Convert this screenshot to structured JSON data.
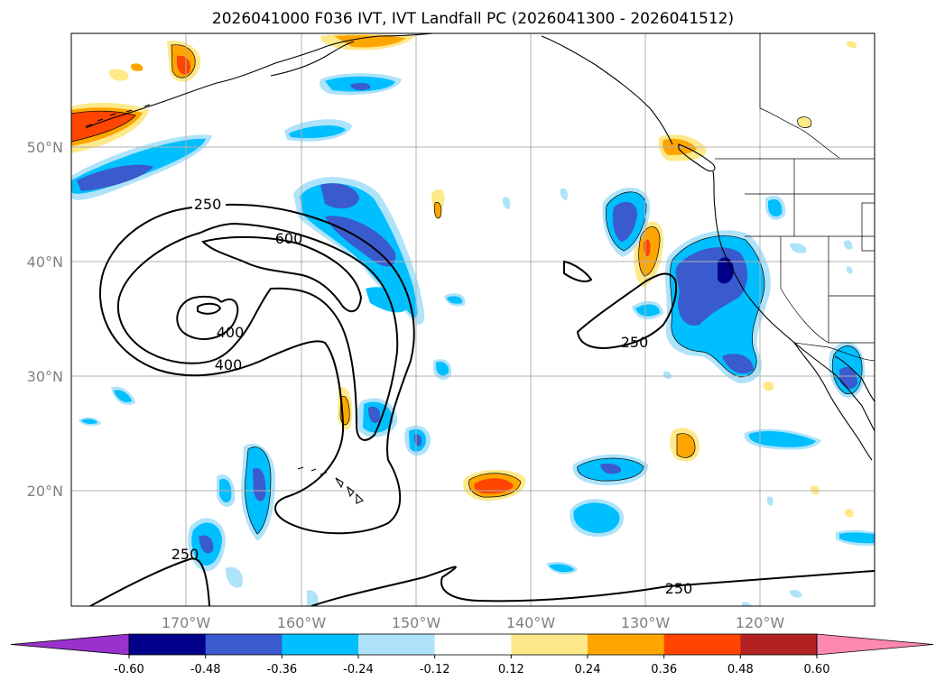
{
  "chart_data": {
    "type": "heatmap",
    "title": "2026041000 F036 IVT, IVT Landfall PC (2026041300 - 2026041512)",
    "lat_ticks": [
      "50°N",
      "40°N",
      "30°N",
      "20°N"
    ],
    "lon_ticks": [
      "170°W",
      "160°W",
      "150°W",
      "140°W",
      "130°W",
      "120°W"
    ],
    "lon_range": [
      -180,
      -110
    ],
    "lat_range": [
      10,
      60
    ],
    "colorbar": {
      "levels": [
        "-0.60",
        "-0.48",
        "-0.36",
        "-0.24",
        "-0.12",
        "0.12",
        "0.24",
        "0.36",
        "0.48",
        "0.60"
      ],
      "colors": [
        "#9932cc",
        "#00008b",
        "#3a5bcd",
        "#00bfff",
        "#aee3fa",
        "#ffffff",
        "#fde98a",
        "#ffa500",
        "#ff4500",
        "#b22222",
        "#ff88b0"
      ]
    },
    "ivt_contours": {
      "levels": [
        250,
        400,
        600
      ],
      "labels": [
        "250",
        "600",
        "400",
        "400",
        "250",
        "250",
        "250"
      ]
    },
    "grid": true
  }
}
